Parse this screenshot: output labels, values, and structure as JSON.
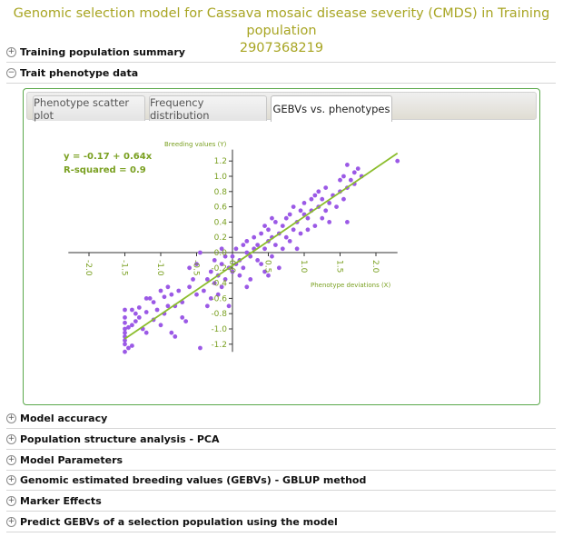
{
  "page": {
    "title_line1": "Genomic selection model for Cassava mosaic disease severity (CMDS) in Training population",
    "title_line2": "2907368219"
  },
  "sections_top": [
    {
      "icon": "plus-icon",
      "label": "Training population summary",
      "expanded": false
    },
    {
      "icon": "minus-icon",
      "label": "Trait phenotype data",
      "expanded": true
    }
  ],
  "tabs": [
    {
      "label": "Phenotype scatter plot",
      "active": false
    },
    {
      "label": "Frequency distribution",
      "active": false
    },
    {
      "label": "GEBVs vs. phenotypes",
      "active": true
    }
  ],
  "sections_bottom": [
    {
      "icon": "plus-icon",
      "label": "Model accuracy",
      "expanded": false
    },
    {
      "icon": "plus-icon",
      "label": "Population structure analysis - PCA",
      "expanded": false
    },
    {
      "icon": "plus-icon",
      "label": "Model Parameters",
      "expanded": false
    },
    {
      "icon": "plus-icon",
      "label": "Genomic estimated breeding values (GEBVs) - GBLUP method",
      "expanded": false
    },
    {
      "icon": "plus-icon",
      "label": "Marker Effects",
      "expanded": false
    },
    {
      "icon": "plus-icon",
      "label": "Predict GEBVs of a selection population using the model",
      "expanded": false
    }
  ],
  "colors": {
    "title": "#a8a523",
    "points": "#9b59e6",
    "line": "#8bbd2c",
    "axis_text": "#7aa021",
    "panel_border": "#5aa84a"
  },
  "chart_data": {
    "type": "scatter",
    "equation": "y = -0.17 + 0.64x",
    "r_squared": "R-squared = 0.9",
    "xlabel": "Phenotype deviations (X)",
    "ylabel": "Breeding values (Y)",
    "xlim": [
      -2.3,
      2.3
    ],
    "ylim": [
      -1.3,
      1.35
    ],
    "x_ticks": [
      "-2.0",
      "-1.5",
      "-1.0",
      "-0.5",
      "0.0",
      "0.5",
      "1.0",
      "1.5",
      "2.0"
    ],
    "y_ticks": [
      "1.2",
      "1.0",
      "0.8",
      "0.6",
      "0.4",
      "0.2",
      "0.0",
      "-0.2",
      "-0.4",
      "-0.6",
      "-0.8",
      "-1.0",
      "-1.2"
    ],
    "regression": {
      "intercept": -0.17,
      "slope": 0.64,
      "x_range": [
        -1.5,
        2.3
      ]
    },
    "points": [
      [
        -1.5,
        -0.75
      ],
      [
        -1.5,
        -0.85
      ],
      [
        -1.5,
        -0.92
      ],
      [
        -1.5,
        -1.0
      ],
      [
        -1.5,
        -1.05
      ],
      [
        -1.5,
        -1.1
      ],
      [
        -1.5,
        -1.15
      ],
      [
        -1.5,
        -1.2
      ],
      [
        -1.5,
        -1.3
      ],
      [
        -1.45,
        -1.25
      ],
      [
        -1.4,
        -1.22
      ],
      [
        -1.45,
        -0.98
      ],
      [
        -1.4,
        -0.95
      ],
      [
        -1.35,
        -0.9
      ],
      [
        -1.35,
        -0.8
      ],
      [
        -1.4,
        -0.75
      ],
      [
        -1.3,
        -0.72
      ],
      [
        -1.3,
        -0.85
      ],
      [
        -1.25,
        -1.0
      ],
      [
        -1.2,
        -1.05
      ],
      [
        -1.2,
        -0.78
      ],
      [
        -1.15,
        -0.6
      ],
      [
        -1.2,
        -0.6
      ],
      [
        -1.1,
        -0.65
      ],
      [
        -1.1,
        -0.88
      ],
      [
        -1.05,
        -0.75
      ],
      [
        -1.0,
        -0.5
      ],
      [
        -1.0,
        -0.95
      ],
      [
        -0.95,
        -0.8
      ],
      [
        -0.95,
        -0.58
      ],
      [
        -0.9,
        -0.45
      ],
      [
        -0.85,
        -0.55
      ],
      [
        -0.85,
        -1.05
      ],
      [
        -0.8,
        -1.1
      ],
      [
        -0.8,
        -0.7
      ],
      [
        -0.75,
        -0.5
      ],
      [
        -0.7,
        -0.65
      ],
      [
        -0.65,
        -0.9
      ],
      [
        -0.6,
        -0.2
      ],
      [
        -0.6,
        -0.45
      ],
      [
        -0.55,
        -0.35
      ],
      [
        -0.5,
        -0.15
      ],
      [
        -0.5,
        -0.55
      ],
      [
        -0.45,
        -1.25
      ],
      [
        -0.4,
        -0.5
      ],
      [
        -0.35,
        -0.35
      ],
      [
        -0.3,
        -0.25
      ],
      [
        -0.3,
        -0.6
      ],
      [
        -0.25,
        -0.1
      ],
      [
        -0.25,
        -0.4
      ],
      [
        -0.2,
        -0.3
      ],
      [
        -0.2,
        -0.55
      ],
      [
        -0.15,
        -0.15
      ],
      [
        -0.15,
        -0.45
      ],
      [
        -0.1,
        -0.05
      ],
      [
        -0.1,
        -0.35
      ],
      [
        -0.05,
        -0.2
      ],
      [
        -0.05,
        -0.7
      ],
      [
        0.0,
        -0.25
      ],
      [
        0.0,
        -0.05
      ],
      [
        0.05,
        0.05
      ],
      [
        0.05,
        -0.15
      ],
      [
        0.1,
        -0.1
      ],
      [
        0.1,
        -0.3
      ],
      [
        0.15,
        0.1
      ],
      [
        0.15,
        -0.2
      ],
      [
        0.2,
        0.0
      ],
      [
        0.2,
        0.15
      ],
      [
        0.25,
        -0.05
      ],
      [
        0.25,
        -0.35
      ],
      [
        0.3,
        0.2
      ],
      [
        0.3,
        0.05
      ],
      [
        0.35,
        -0.1
      ],
      [
        0.35,
        0.1
      ],
      [
        0.4,
        0.25
      ],
      [
        0.4,
        -0.15
      ],
      [
        0.45,
        0.05
      ],
      [
        0.45,
        0.35
      ],
      [
        0.5,
        0.15
      ],
      [
        0.5,
        0.3
      ],
      [
        0.5,
        -0.3
      ],
      [
        0.55,
        0.2
      ],
      [
        0.55,
        -0.05
      ],
      [
        0.6,
        0.4
      ],
      [
        0.6,
        0.1
      ],
      [
        0.65,
        0.25
      ],
      [
        0.7,
        0.35
      ],
      [
        0.7,
        0.05
      ],
      [
        0.75,
        0.45
      ],
      [
        0.75,
        0.2
      ],
      [
        0.8,
        0.15
      ],
      [
        0.8,
        0.5
      ],
      [
        0.85,
        0.3
      ],
      [
        0.85,
        0.6
      ],
      [
        0.9,
        0.4
      ],
      [
        0.95,
        0.55
      ],
      [
        0.95,
        0.25
      ],
      [
        1.0,
        0.5
      ],
      [
        1.0,
        0.65
      ],
      [
        1.05,
        0.45
      ],
      [
        1.1,
        0.7
      ],
      [
        1.1,
        0.55
      ],
      [
        1.15,
        0.75
      ],
      [
        1.15,
        0.35
      ],
      [
        1.2,
        0.6
      ],
      [
        1.2,
        0.8
      ],
      [
        1.25,
        0.45
      ],
      [
        1.25,
        0.7
      ],
      [
        1.3,
        0.55
      ],
      [
        1.3,
        0.85
      ],
      [
        1.35,
        0.65
      ],
      [
        1.35,
        0.4
      ],
      [
        1.4,
        0.75
      ],
      [
        1.45,
        0.6
      ],
      [
        1.5,
        0.95
      ],
      [
        1.5,
        0.8
      ],
      [
        1.55,
        0.7
      ],
      [
        1.55,
        1.0
      ],
      [
        1.6,
        1.15
      ],
      [
        1.6,
        0.85
      ],
      [
        1.6,
        0.4
      ],
      [
        1.65,
        0.95
      ],
      [
        1.7,
        1.05
      ],
      [
        1.7,
        0.9
      ],
      [
        1.75,
        1.1
      ],
      [
        1.8,
        1.0
      ],
      [
        -0.45,
        0.0
      ],
      [
        -0.35,
        -0.7
      ],
      [
        0.45,
        -0.25
      ],
      [
        0.65,
        -0.2
      ],
      [
        0.9,
        0.05
      ],
      [
        2.3,
        1.2
      ],
      [
        -0.7,
        -0.85
      ],
      [
        -0.9,
        -0.7
      ],
      [
        1.05,
        0.3
      ],
      [
        0.2,
        -0.45
      ],
      [
        -0.15,
        0.05
      ],
      [
        0.55,
        0.45
      ]
    ]
  }
}
